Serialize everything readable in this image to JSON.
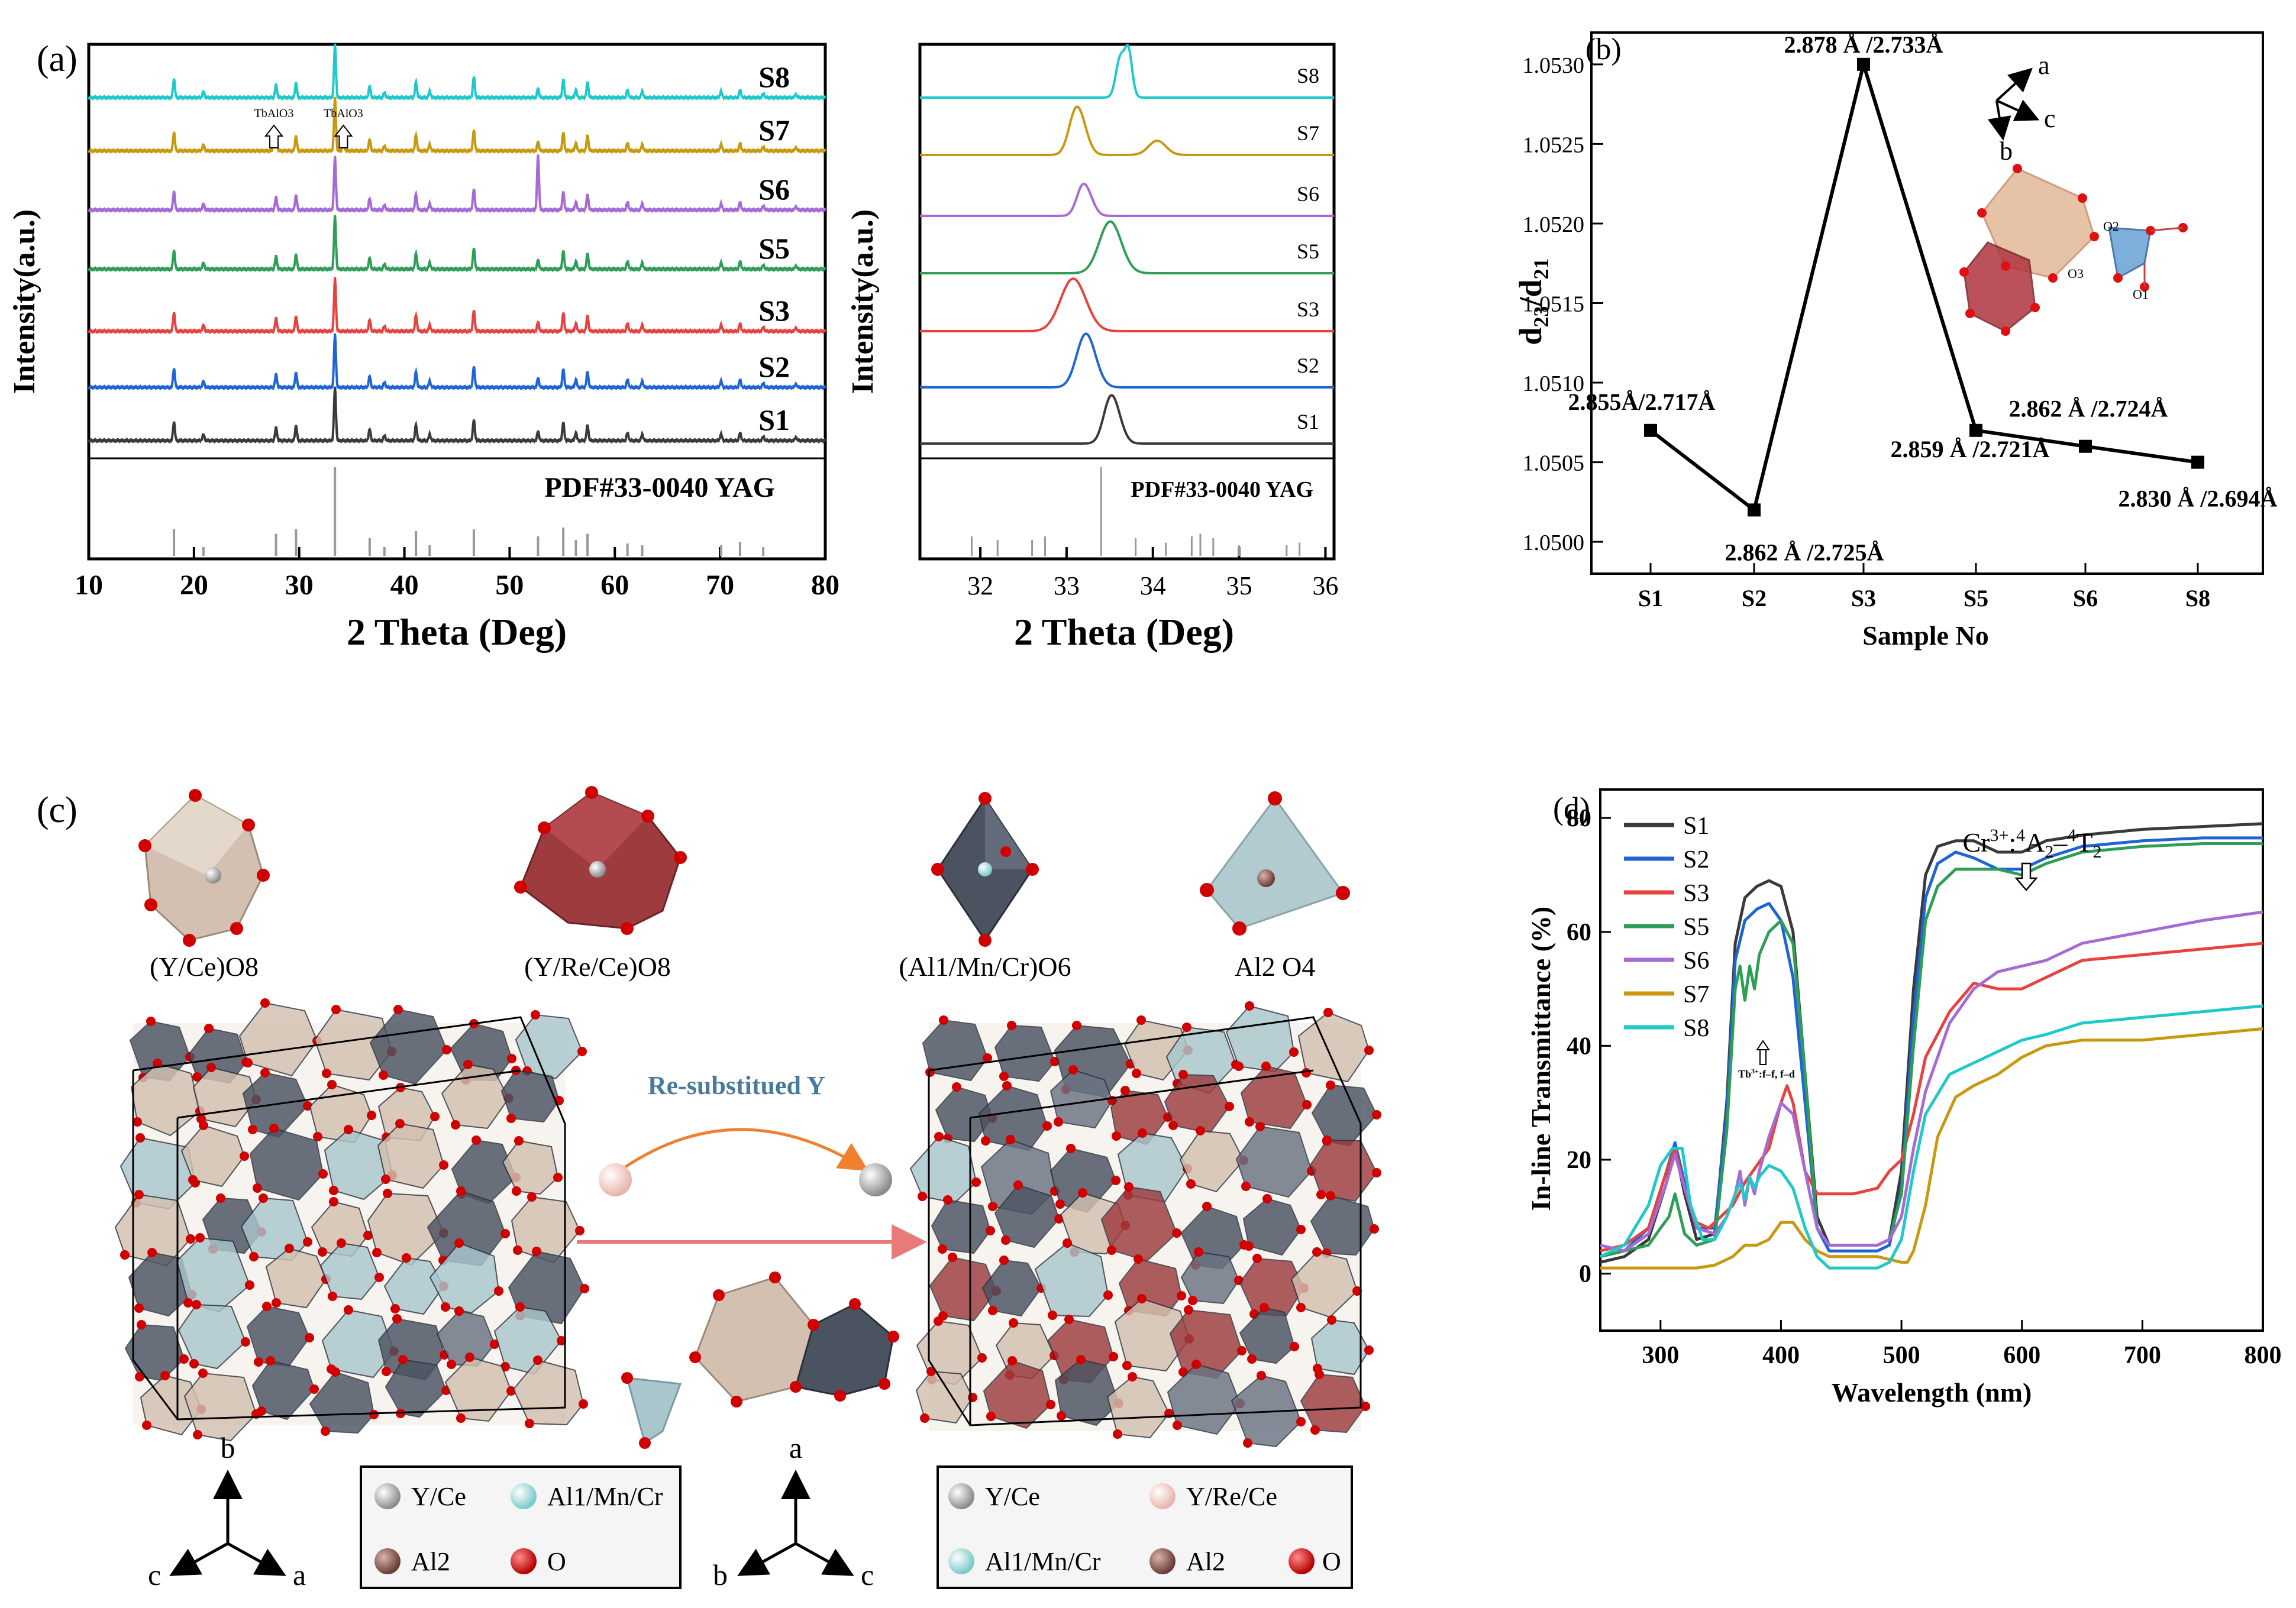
{
  "panels": {
    "a": {
      "label": "(a)",
      "ylabel": "Intensity(a.u.)",
      "xlabel": "2 Theta (Deg)",
      "xlim": [
        10,
        80
      ],
      "xticks": [
        10,
        20,
        30,
        40,
        50,
        60,
        70,
        80
      ],
      "reference_label": "PDF#33-0040 YAG",
      "impurity_labels": [
        "TbAlO3",
        "TbAlO3"
      ],
      "impurity_positions": [
        27.6,
        34.2
      ],
      "impurity_sample": "S7",
      "inset": {
        "ylabel": "Intensity(a.u.)",
        "xlabel": "2 Theta (Deg)",
        "xlim": [
          31.3,
          36.1
        ],
        "xticks": [
          32,
          33,
          34,
          35,
          36
        ],
        "reference_label": "PDF#33-0040 YAG"
      }
    },
    "b": {
      "label": "(b)",
      "xlabel": "Sample No",
      "ylabel_main": "d",
      "ylabel_sub1": "23",
      "ylabel_slash": "/d",
      "ylabel_sub2": "21",
      "axis_letters": [
        "a",
        "c",
        "b"
      ],
      "atom_labels": [
        "O2",
        "O3",
        "O1"
      ]
    },
    "c": {
      "label": "(c)",
      "polyhedra_labels": [
        "(Y/Ce)O8",
        "(Y/Re/Ce)O8",
        "(Al1/Mn/Cr)O6",
        "Al2 O4"
      ],
      "arrow_label": "Re-substitued Y",
      "legend_left": [
        "Y/Ce",
        "Al1/Mn/Cr",
        "Al2",
        "O"
      ],
      "legend_right": [
        "Y/Ce",
        "Y/Re/Ce",
        "Al1/Mn/Cr",
        "Al2",
        "O"
      ],
      "axes_left": [
        "b",
        "c",
        "a"
      ],
      "axes_right": [
        "a",
        "b",
        "c"
      ]
    },
    "d": {
      "label": "(d)",
      "annotation_cr": "Cr3+:4A2-4T2",
      "annotation_tb": "Tb3+:f-f, f-d"
    }
  },
  "colors": {
    "S1": "#3a3a3a",
    "S2": "#1f64d6",
    "S3": "#e8423f",
    "S5": "#2e9e57",
    "S6": "#a66ad6",
    "S7": "#c8980e",
    "S8": "#1fc9c9"
  },
  "chart_data": [
    {
      "id": "xrd_full",
      "type": "line",
      "title": "",
      "xlabel": "2 Theta (Deg)",
      "ylabel": "Intensity(a.u.)",
      "xlim": [
        10,
        80
      ],
      "series_order_bottom_to_top": [
        "S1",
        "S2",
        "S3",
        "S5",
        "S6",
        "S7",
        "S8"
      ],
      "peaks": [
        18.1,
        20.9,
        27.8,
        29.7,
        33.4,
        36.7,
        38.1,
        41.1,
        42.4,
        46.6,
        52.7,
        55.1,
        56.3,
        57.4,
        61.2,
        62.6,
        70.1,
        71.9,
        74.1,
        77.2
      ],
      "peak_heights": [
        0.35,
        0.12,
        0.25,
        0.28,
        1.0,
        0.22,
        0.1,
        0.3,
        0.12,
        0.4,
        0.18,
        0.35,
        0.15,
        0.3,
        0.15,
        0.12,
        0.12,
        0.15,
        0.08,
        0.06
      ],
      "reference": {
        "label": "PDF#33-0040 YAG",
        "positions": [
          18.1,
          20.9,
          27.8,
          29.7,
          33.4,
          36.7,
          38.1,
          41.1,
          42.4,
          46.6,
          52.7,
          55.1,
          56.3,
          57.4,
          61.2,
          62.6,
          70.1,
          71.9,
          74.1
        ],
        "intensities": [
          0.3,
          0.1,
          0.25,
          0.3,
          1.0,
          0.2,
          0.1,
          0.28,
          0.12,
          0.3,
          0.22,
          0.32,
          0.18,
          0.25,
          0.14,
          0.12,
          0.12,
          0.16,
          0.1
        ]
      }
    },
    {
      "id": "xrd_zoom",
      "type": "line",
      "xlabel": "2 Theta (Deg)",
      "xlim": [
        31.3,
        36.1
      ],
      "series_order_bottom_to_top": [
        "S1",
        "S2",
        "S3",
        "S5",
        "S6",
        "S7",
        "S8"
      ],
      "peak_centers": {
        "S1": 33.5,
        "S2": 33.2,
        "S3": 33.05,
        "S5": 33.48,
        "S6": 33.18,
        "S7": 33.1,
        "S8": 33.62
      },
      "peak_widths": {
        "S1": 0.08,
        "S2": 0.1,
        "S3": 0.14,
        "S5": 0.12,
        "S6": 0.07,
        "S7": 0.08,
        "S8": 0.05
      },
      "peak_heights": {
        "S1": 0.8,
        "S2": 0.85,
        "S3": 0.8,
        "S5": 0.8,
        "S6": 0.55,
        "S7": 0.8,
        "S8": 0.8
      },
      "reference_positions": [
        31.9,
        32.2,
        32.6,
        32.75,
        33.4,
        33.8,
        34.15,
        34.45,
        34.55,
        34.7,
        35.0,
        35.55,
        35.7
      ],
      "reference_intensities": [
        0.22,
        0.18,
        0.18,
        0.22,
        1.0,
        0.2,
        0.15,
        0.22,
        0.25,
        0.2,
        0.12,
        0.12,
        0.15
      ]
    },
    {
      "id": "d_ratio",
      "type": "line",
      "xlabel": "Sample No",
      "ylabel": "d23/d21",
      "categories": [
        "S1",
        "S2",
        "S3",
        "S5",
        "S6",
        "S8"
      ],
      "values": [
        1.0507,
        1.0502,
        1.053,
        1.0507,
        1.0506,
        1.0505
      ],
      "ylim": [
        1.0498,
        1.0532
      ],
      "yticks": [
        1.05,
        1.0505,
        1.051,
        1.0515,
        1.052,
        1.0525,
        1.053
      ],
      "ytick_labels": [
        "1.0500",
        "1.0505",
        "1.0510",
        "1.0515",
        "1.0520",
        "1.0525",
        "1.0530"
      ],
      "point_labels": [
        "2.855Å/2.717Å",
        "2.862 Å /2.725Å",
        "2.878 Å /2.733Å",
        "2.859 Å /2.721Å",
        "2.862 Å /2.724Å",
        "2.830 Å /2.694Å"
      ]
    },
    {
      "id": "transmittance",
      "type": "line",
      "xlabel": "Wavelength (nm)",
      "ylabel": "In-line Transmittance (%)",
      "xlim": [
        250,
        800
      ],
      "ylim": [
        -10,
        85
      ],
      "xticks": [
        300,
        400,
        500,
        600,
        700,
        800
      ],
      "yticks": [
        0,
        20,
        40,
        60,
        80
      ],
      "legend": [
        "S1",
        "S2",
        "S3",
        "S5",
        "S6",
        "S7",
        "S8"
      ],
      "series": [
        {
          "name": "S1",
          "x": [
            250,
            270,
            290,
            305,
            312,
            320,
            330,
            345,
            355,
            362,
            370,
            380,
            390,
            400,
            410,
            420,
            430,
            440,
            460,
            480,
            490,
            500,
            510,
            520,
            530,
            545,
            560,
            580,
            600,
            620,
            650,
            700,
            750,
            800
          ],
          "y": [
            2,
            3,
            6,
            16,
            22,
            14,
            6,
            7,
            30,
            58,
            66,
            68,
            69,
            68,
            60,
            35,
            10,
            5,
            5,
            5,
            6,
            18,
            50,
            70,
            75,
            76,
            76,
            74,
            74,
            76,
            77,
            78,
            78.5,
            79
          ]
        },
        {
          "name": "S2",
          "x": [
            250,
            270,
            290,
            305,
            312,
            320,
            330,
            345,
            355,
            362,
            370,
            380,
            390,
            400,
            410,
            420,
            430,
            440,
            460,
            480,
            490,
            500,
            510,
            520,
            530,
            545,
            560,
            580,
            600,
            620,
            650,
            700,
            750,
            800
          ],
          "y": [
            3,
            4,
            8,
            18,
            23,
            16,
            8,
            8,
            28,
            55,
            62,
            64,
            65,
            62,
            52,
            30,
            8,
            4,
            4,
            4,
            5,
            15,
            45,
            66,
            72,
            74,
            73,
            71,
            71,
            73,
            75,
            76,
            76.5,
            76.5
          ]
        },
        {
          "name": "S3",
          "x": [
            250,
            270,
            290,
            305,
            312,
            320,
            330,
            340,
            350,
            360,
            370,
            380,
            390,
            400,
            405,
            410,
            420,
            430,
            440,
            460,
            480,
            490,
            500,
            510,
            520,
            540,
            560,
            580,
            600,
            620,
            650,
            700,
            750,
            800
          ],
          "y": [
            4,
            5,
            8,
            18,
            22,
            15,
            9,
            8,
            10,
            12,
            16,
            19,
            22,
            30,
            33,
            30,
            18,
            14,
            14,
            14,
            15,
            18,
            20,
            28,
            38,
            46,
            51,
            50,
            50,
            52,
            55,
            56,
            57,
            58
          ]
        },
        {
          "name": "S5",
          "x": [
            250,
            270,
            290,
            300,
            307,
            312,
            320,
            330,
            345,
            355,
            362,
            366,
            370,
            374,
            378,
            382,
            390,
            400,
            410,
            420,
            430,
            440,
            460,
            480,
            490,
            500,
            510,
            520,
            530,
            545,
            560,
            580,
            600,
            620,
            650,
            700,
            750,
            800
          ],
          "y": [
            3,
            4,
            5,
            8,
            10,
            14,
            7,
            5,
            6,
            25,
            50,
            54,
            48,
            54,
            50,
            56,
            60,
            62,
            58,
            35,
            8,
            5,
            5,
            5,
            6,
            14,
            40,
            62,
            68,
            71,
            71,
            71,
            70,
            72,
            74,
            75,
            75.5,
            75.5
          ]
        },
        {
          "name": "S6",
          "x": [
            250,
            270,
            290,
            305,
            312,
            320,
            330,
            345,
            355,
            362,
            366,
            370,
            374,
            378,
            382,
            390,
            400,
            410,
            420,
            430,
            440,
            460,
            480,
            490,
            500,
            510,
            520,
            540,
            560,
            580,
            600,
            620,
            650,
            700,
            750,
            800
          ],
          "y": [
            5,
            4,
            7,
            16,
            21,
            15,
            8,
            7,
            10,
            14,
            18,
            12,
            17,
            14,
            18,
            24,
            30,
            28,
            18,
            8,
            5,
            5,
            5,
            6,
            10,
            22,
            32,
            44,
            50,
            53,
            54,
            55,
            58,
            60,
            62,
            63.5
          ]
        },
        {
          "name": "S7",
          "x": [
            250,
            270,
            290,
            310,
            330,
            345,
            360,
            370,
            380,
            390,
            400,
            410,
            420,
            430,
            440,
            460,
            480,
            500,
            505,
            510,
            520,
            530,
            545,
            560,
            580,
            600,
            620,
            650,
            700,
            750,
            800
          ],
          "y": [
            1,
            1,
            1,
            1,
            1,
            1.5,
            3,
            5,
            5,
            6,
            9,
            9,
            6,
            4,
            3,
            3,
            3,
            2,
            2,
            4,
            12,
            24,
            31,
            33,
            35,
            38,
            40,
            41,
            41,
            42,
            43
          ]
        },
        {
          "name": "S8",
          "x": [
            250,
            270,
            290,
            300,
            310,
            318,
            325,
            335,
            345,
            355,
            362,
            366,
            370,
            374,
            378,
            382,
            390,
            400,
            410,
            420,
            430,
            440,
            460,
            480,
            490,
            500,
            510,
            520,
            540,
            560,
            580,
            600,
            620,
            650,
            700,
            750,
            800
          ],
          "y": [
            3,
            5,
            12,
            19,
            22,
            22,
            12,
            6,
            6,
            10,
            14,
            16,
            13,
            17,
            15,
            17,
            19,
            18,
            15,
            8,
            3,
            1,
            1,
            1,
            2,
            6,
            18,
            28,
            35,
            37,
            39,
            41,
            42,
            44,
            45,
            46,
            47
          ]
        }
      ],
      "annotations": [
        "Cr3+:4A2-4T2",
        "Tb3+:f-f, f-d"
      ]
    }
  ]
}
